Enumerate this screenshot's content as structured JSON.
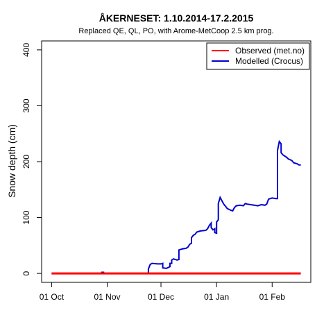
{
  "chart_data": {
    "type": "line",
    "title": "ÅKERNESET: 1.10.2014-17.2.2015",
    "subtitle": "Replaced QE, QL, PO,  with Arome-MetCoop 2.5 km prog.",
    "xlabel": "",
    "ylabel": "Snow depth (cm)",
    "xlim": [
      "2014-10-01",
      "2015-02-17"
    ],
    "ylim": [
      0,
      400
    ],
    "x_ticks": [
      {
        "date": "2014-10-01",
        "label": "01 Oct"
      },
      {
        "date": "2014-11-01",
        "label": "01 Nov"
      },
      {
        "date": "2014-12-01",
        "label": "01 Dec"
      },
      {
        "date": "2015-01-01",
        "label": "01 Jan"
      },
      {
        "date": "2015-02-01",
        "label": "01 Feb"
      }
    ],
    "y_ticks": [
      0,
      100,
      200,
      300,
      400
    ],
    "grid": false,
    "legend_position": "top-right",
    "series": [
      {
        "name": "Observed (met.no)",
        "color": "#ff0000",
        "points": [
          [
            "2014-10-01",
            0
          ],
          [
            "2015-02-17",
            0
          ]
        ]
      },
      {
        "name": "Modelled (Crocus)",
        "color": "#0000cc",
        "points": [
          [
            "2014-10-01",
            0
          ],
          [
            "2014-10-29",
            0
          ],
          [
            "2014-10-29",
            2
          ],
          [
            "2014-10-30",
            2
          ],
          [
            "2014-10-30",
            0
          ],
          [
            "2014-11-24",
            0
          ],
          [
            "2014-11-24",
            8
          ],
          [
            "2014-11-25",
            16
          ],
          [
            "2014-11-26",
            18
          ],
          [
            "2014-11-29",
            17
          ],
          [
            "2014-12-01",
            17
          ],
          [
            "2014-12-02",
            18
          ],
          [
            "2014-12-02",
            10
          ],
          [
            "2014-12-04",
            9
          ],
          [
            "2014-12-06",
            12
          ],
          [
            "2014-12-06",
            18
          ],
          [
            "2014-12-07",
            18
          ],
          [
            "2014-12-07",
            24
          ],
          [
            "2014-12-08",
            26
          ],
          [
            "2014-12-10",
            24
          ],
          [
            "2014-12-11",
            25
          ],
          [
            "2014-12-11",
            42
          ],
          [
            "2014-12-13",
            44
          ],
          [
            "2014-12-15",
            45
          ],
          [
            "2014-12-16",
            47
          ],
          [
            "2014-12-17",
            52
          ],
          [
            "2014-12-18",
            54
          ],
          [
            "2014-12-18",
            64
          ],
          [
            "2014-12-19",
            68
          ],
          [
            "2014-12-20",
            70
          ],
          [
            "2014-12-21",
            74
          ],
          [
            "2014-12-23",
            76
          ],
          [
            "2014-12-26",
            77
          ],
          [
            "2014-12-27",
            80
          ],
          [
            "2014-12-28",
            86
          ],
          [
            "2014-12-29",
            90
          ],
          [
            "2014-12-29",
            82
          ],
          [
            "2014-12-30",
            78
          ],
          [
            "2014-12-31",
            80
          ],
          [
            "2014-12-31",
            73
          ],
          [
            "2015-01-01",
            72
          ],
          [
            "2015-01-01",
            92
          ],
          [
            "2015-01-02",
            96
          ],
          [
            "2015-01-02",
            125
          ],
          [
            "2015-01-03",
            136
          ],
          [
            "2015-01-04",
            130
          ],
          [
            "2015-01-05",
            124
          ],
          [
            "2015-01-06",
            120
          ],
          [
            "2015-01-07",
            116
          ],
          [
            "2015-01-09",
            113
          ],
          [
            "2015-01-10",
            112
          ],
          [
            "2015-01-11",
            118
          ],
          [
            "2015-01-12",
            121
          ],
          [
            "2015-01-14",
            122
          ],
          [
            "2015-01-16",
            121
          ],
          [
            "2015-01-17",
            125
          ],
          [
            "2015-01-18",
            124
          ],
          [
            "2015-01-20",
            123
          ],
          [
            "2015-01-22",
            122
          ],
          [
            "2015-01-24",
            121
          ],
          [
            "2015-01-26",
            123
          ],
          [
            "2015-01-28",
            122
          ],
          [
            "2015-01-29",
            124
          ],
          [
            "2015-01-30",
            133
          ],
          [
            "2015-02-01",
            135
          ],
          [
            "2015-02-03",
            134
          ],
          [
            "2015-02-04",
            134
          ],
          [
            "2015-02-04",
            220
          ],
          [
            "2015-02-05",
            236
          ],
          [
            "2015-02-06",
            232
          ],
          [
            "2015-02-06",
            216
          ],
          [
            "2015-02-07",
            212
          ],
          [
            "2015-02-09",
            208
          ],
          [
            "2015-02-10",
            205
          ],
          [
            "2015-02-12",
            202
          ],
          [
            "2015-02-13",
            198
          ],
          [
            "2015-02-15",
            196
          ],
          [
            "2015-02-16",
            194
          ],
          [
            "2015-02-17",
            194
          ]
        ]
      }
    ]
  }
}
